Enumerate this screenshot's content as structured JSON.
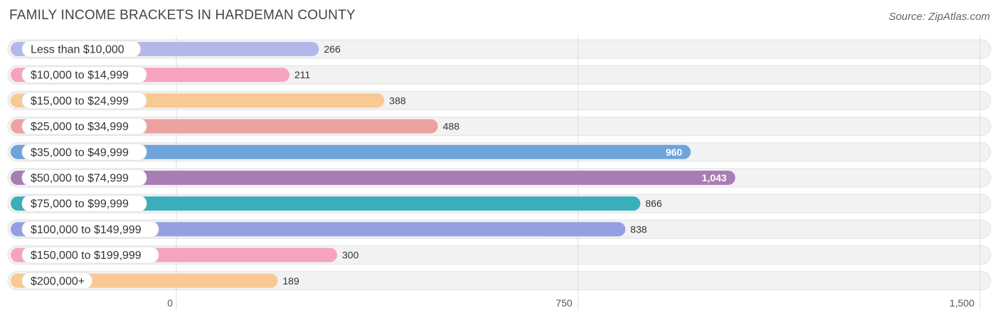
{
  "header": {
    "title": "FAMILY INCOME BRACKETS IN HARDEMAN COUNTY",
    "source": "Source: ZipAtlas.com"
  },
  "chart_data": {
    "type": "bar",
    "orientation": "horizontal",
    "title": "FAMILY INCOME BRACKETS IN HARDEMAN COUNTY",
    "categories": [
      "Less than $10,000",
      "$10,000 to $14,999",
      "$15,000 to $24,999",
      "$25,000 to $34,999",
      "$35,000 to $49,999",
      "$50,000 to $74,999",
      "$75,000 to $99,999",
      "$100,000 to $149,999",
      "$150,000 to $199,999",
      "$200,000+"
    ],
    "values": [
      266,
      211,
      388,
      488,
      960,
      1043,
      866,
      838,
      300,
      189
    ],
    "value_labels": [
      "266",
      "211",
      "388",
      "488",
      "960",
      "1,043",
      "866",
      "838",
      "300",
      "189"
    ],
    "colors": [
      "#b3b8ea",
      "#f5a3bf",
      "#f9c994",
      "#eca29f",
      "#6ea4dc",
      "#a87db3",
      "#3aafbb",
      "#949fe3",
      "#f5a3bf",
      "#f9c994"
    ],
    "xlim": [
      0,
      1500
    ],
    "ticks": [
      0,
      750,
      1500
    ],
    "tick_labels": [
      "0",
      "750",
      "1,500"
    ],
    "grid": true,
    "legend": "none"
  }
}
